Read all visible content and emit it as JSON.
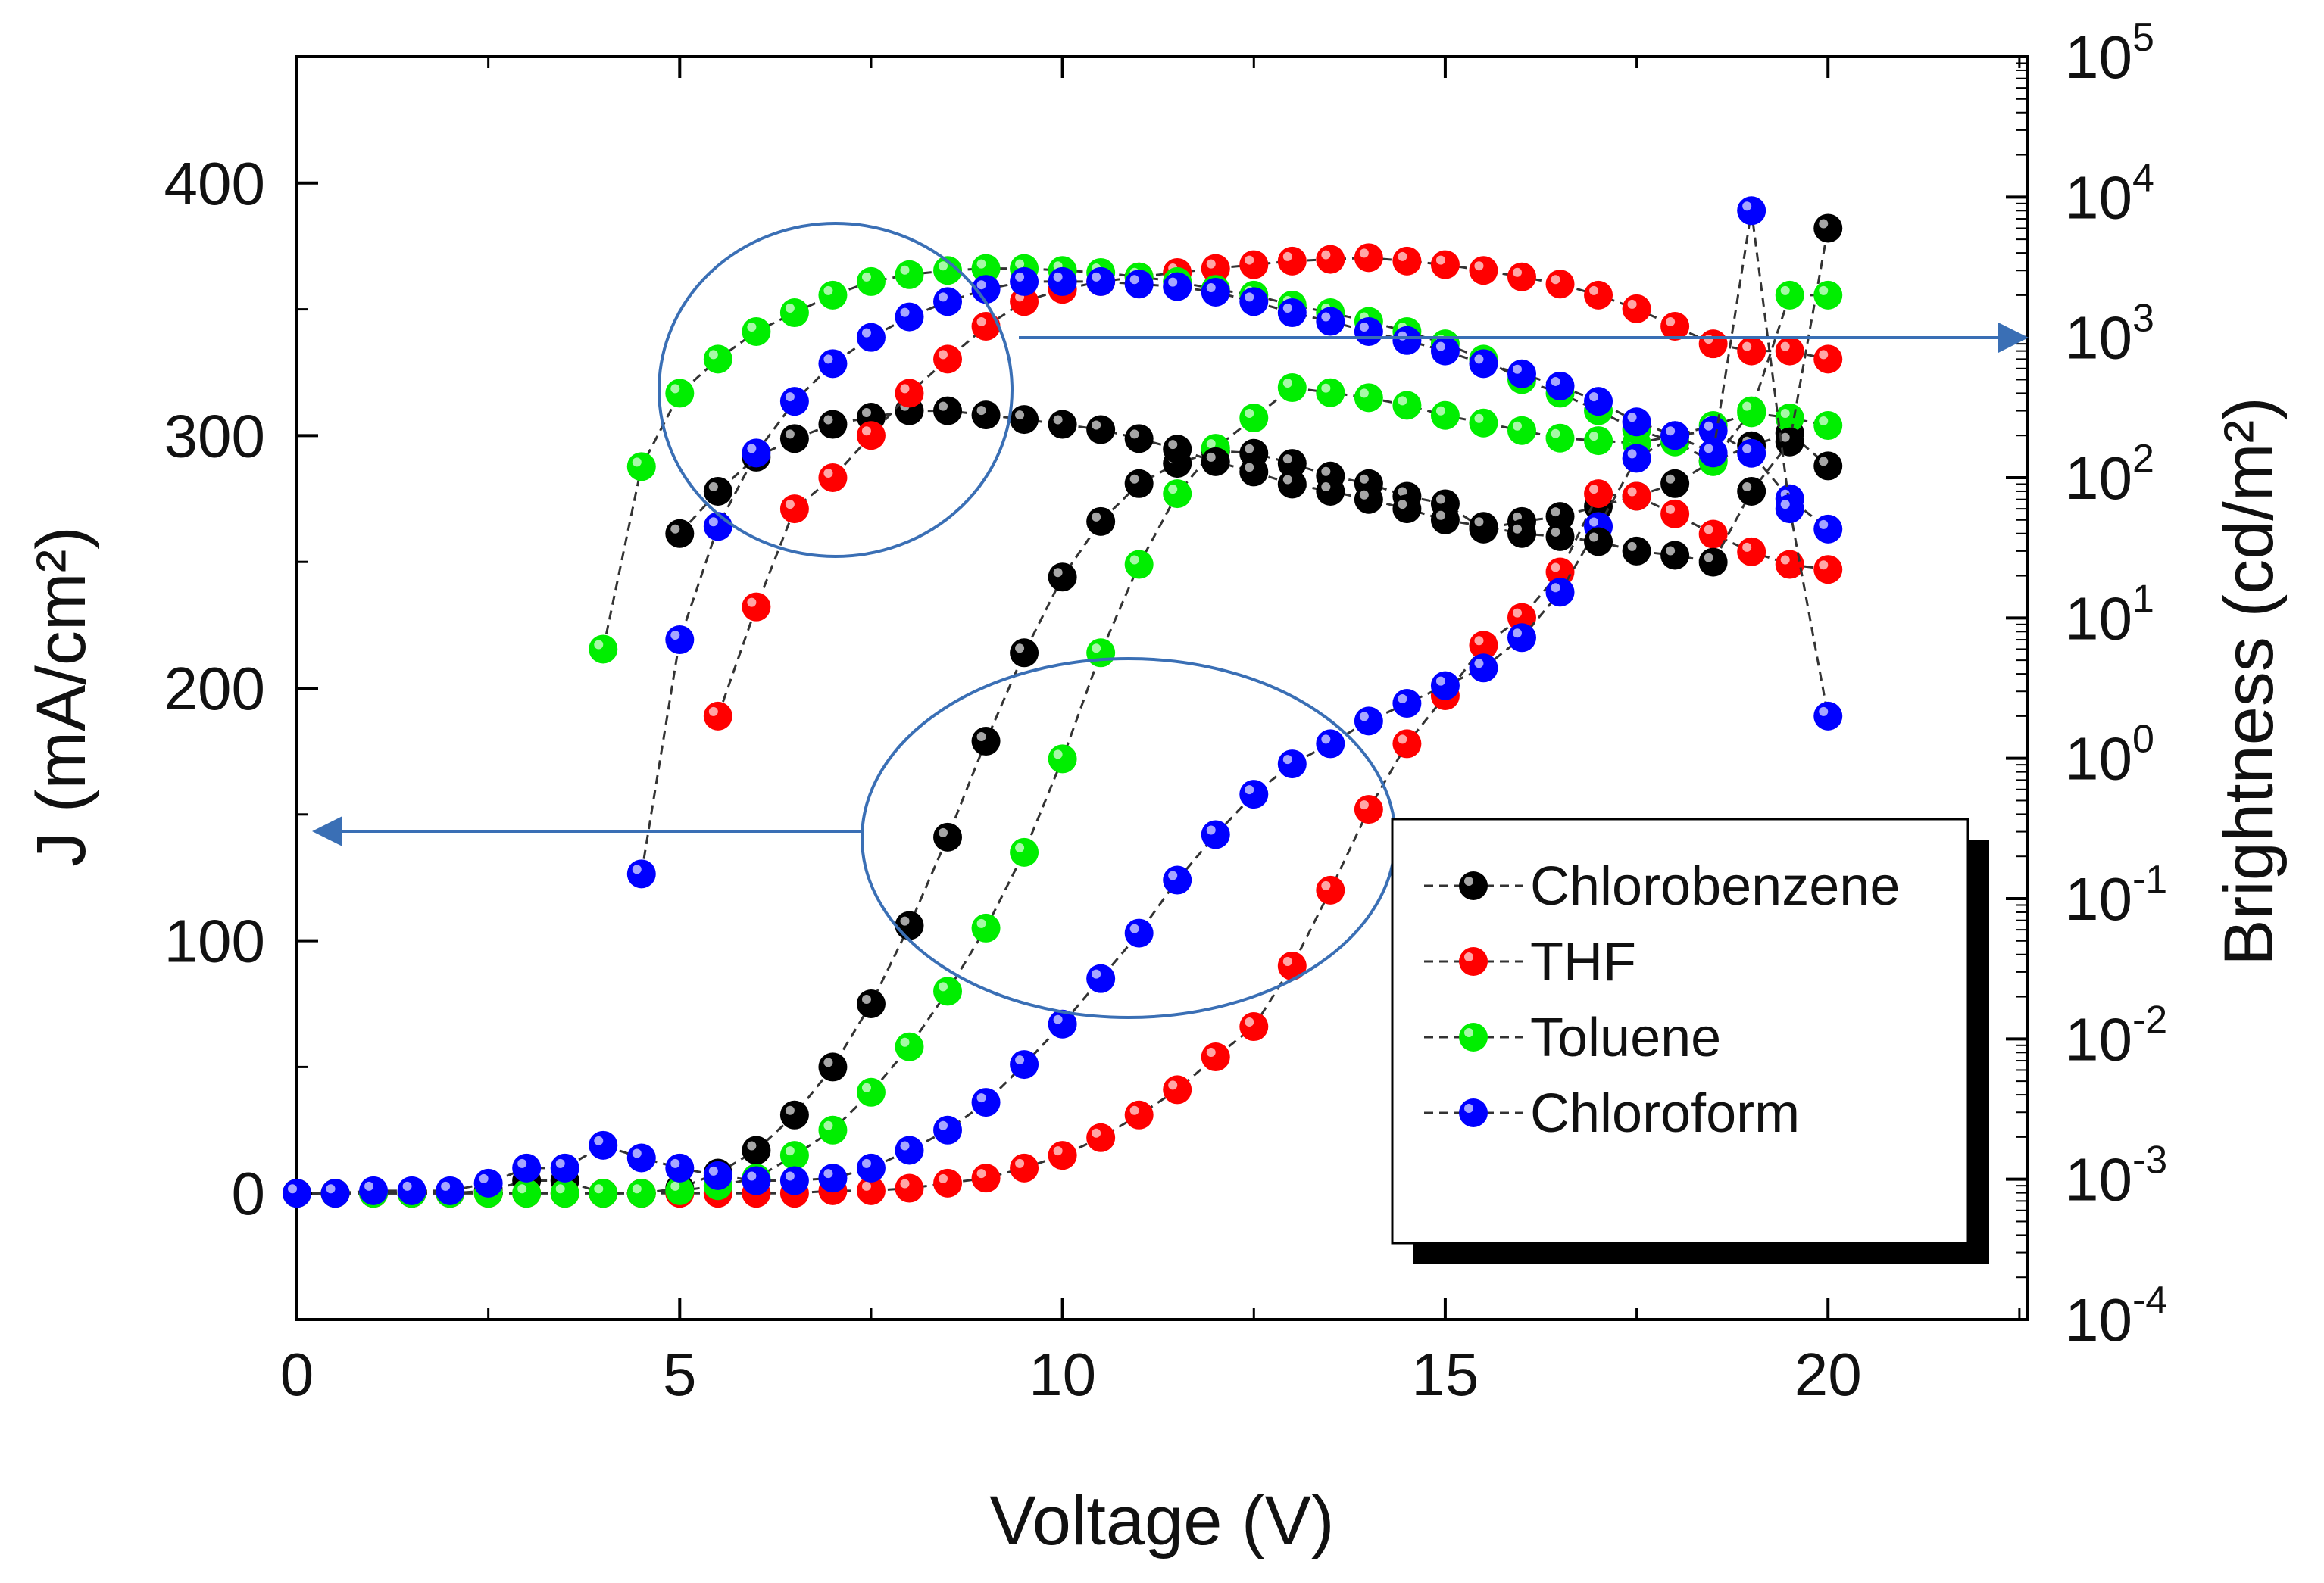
{
  "chart_data": {
    "type": "scatter",
    "title": "",
    "xlabel": "Voltage (V)",
    "ylabel_left": "J (mA/cm²)",
    "ylabel_right": "Brightness (cd/m²)",
    "xlim": [
      0,
      22.6
    ],
    "ylim_left": [
      -50,
      450
    ],
    "ylim_right_log10": [
      -4,
      5
    ],
    "x_ticks": [
      0,
      5,
      10,
      15,
      20
    ],
    "y_left_ticks": [
      0,
      100,
      200,
      300,
      400
    ],
    "y_right_ticks": [
      {
        "base": "10",
        "exp": "-4",
        "p": -4
      },
      {
        "base": "10",
        "exp": "-3",
        "p": -3
      },
      {
        "base": "10",
        "exp": "-2",
        "p": -2
      },
      {
        "base": "10",
        "exp": "-1",
        "p": -1
      },
      {
        "base": "10",
        "exp": "0",
        "p": 0
      },
      {
        "base": "10",
        "exp": "1",
        "p": 1
      },
      {
        "base": "10",
        "exp": "2",
        "p": 2
      },
      {
        "base": "10",
        "exp": "3",
        "p": 3
      },
      {
        "base": "10",
        "exp": "4",
        "p": 4
      },
      {
        "base": "10",
        "exp": "5",
        "p": 5
      }
    ],
    "colors": {
      "Chlorobenzene": "#000000",
      "THF": "#ff0000",
      "Toluene": "#00ee00",
      "Chloroform": "#0000ff",
      "annotation": "#3a6fb5"
    },
    "legend": [
      "Chlorobenzene",
      "THF",
      "Toluene",
      "Chloroform"
    ],
    "series_J": [
      {
        "name": "Chlorobenzene",
        "x": [
          0,
          0.5,
          1,
          1.5,
          2,
          2.5,
          3,
          3.5,
          4,
          4.5,
          5,
          5.5,
          6,
          6.5,
          7,
          7.5,
          8,
          8.5,
          9,
          9.5,
          10,
          10.5,
          11,
          11.5,
          12,
          12.5,
          13,
          13.5,
          14,
          14.5,
          15,
          15.5,
          16,
          16.5,
          17,
          17.5,
          18,
          18.5,
          19,
          19.5,
          20
        ],
        "y": [
          0,
          0,
          0,
          0,
          0,
          1,
          5,
          5,
          0,
          0,
          2,
          8,
          17,
          31,
          50,
          75,
          106,
          141,
          179,
          214,
          244,
          266,
          281,
          289,
          294,
          293,
          289,
          284,
          281,
          276,
          273,
          263,
          266,
          268,
          272,
          276,
          281,
          290,
          296,
          301,
          288
        ]
      },
      {
        "name": "THF",
        "x": [
          0,
          0.5,
          1,
          1.5,
          2,
          2.5,
          3,
          3.5,
          4,
          4.5,
          5,
          5.5,
          6,
          6.5,
          7,
          7.5,
          8,
          8.5,
          9,
          9.5,
          10,
          10.5,
          11,
          11.5,
          12,
          12.5,
          13,
          13.5,
          14,
          14.5,
          15,
          15.5,
          16,
          16.5,
          17,
          17.5,
          18,
          18.5,
          19,
          19.5,
          20
        ],
        "y": [
          0,
          0,
          0,
          0,
          0,
          0,
          0,
          0,
          0,
          0,
          0,
          0,
          0,
          0,
          1,
          1,
          2,
          4,
          6,
          10,
          15,
          22,
          31,
          41,
          54,
          66,
          90,
          120,
          152,
          178,
          197,
          217,
          228,
          246,
          277,
          276,
          269,
          261,
          254,
          249,
          247
        ]
      },
      {
        "name": "Toluene",
        "x": [
          0,
          0.5,
          1,
          1.5,
          2,
          2.5,
          3,
          3.5,
          4,
          4.5,
          5,
          5.5,
          6,
          6.5,
          7,
          7.5,
          8,
          8.5,
          9,
          9.5,
          10,
          10.5,
          11,
          11.5,
          12,
          12.5,
          13,
          13.5,
          14,
          14.5,
          15,
          15.5,
          16,
          16.5,
          17,
          17.5,
          18,
          18.5,
          19,
          19.5,
          20
        ],
        "y": [
          0,
          0,
          0,
          0,
          0,
          0,
          0,
          0,
          0,
          0,
          1,
          3,
          6,
          15,
          25,
          40,
          58,
          80,
          105,
          135,
          172,
          214,
          249,
          277,
          295,
          307,
          319,
          317,
          315,
          312,
          308,
          305,
          302,
          299,
          298,
          297,
          300,
          304,
          309,
          307,
          304
        ]
      },
      {
        "name": "Chloroform",
        "x": [
          0,
          0.5,
          1,
          1.5,
          2,
          2.5,
          3,
          3.5,
          4,
          4.5,
          5,
          5.5,
          6,
          6.5,
          7,
          7.5,
          8,
          8.5,
          9,
          9.5,
          10,
          10.5,
          11,
          11.5,
          12,
          12.5,
          13,
          13.5,
          14,
          14.5,
          15,
          15.5,
          16,
          16.5,
          17,
          17.5,
          18,
          18.5,
          19,
          19.5,
          20
        ],
        "y": [
          0,
          0,
          1,
          1,
          1,
          4,
          10,
          10,
          19,
          14,
          10,
          7,
          5,
          5,
          6,
          10,
          17,
          25,
          36,
          51,
          67,
          85,
          103,
          124,
          142,
          158,
          170,
          178,
          187,
          194,
          201,
          208,
          220,
          238,
          264,
          291,
          300,
          302,
          293,
          275,
          263
        ]
      }
    ],
    "series_brightness": [
      {
        "name": "Chlorobenzene",
        "x": [
          5,
          5.5,
          6,
          6.5,
          7,
          7.5,
          8,
          8.5,
          9,
          9.5,
          10,
          10.5,
          11,
          11.5,
          12,
          12.5,
          13,
          13.5,
          14,
          14.5,
          15,
          15.5,
          16,
          16.5,
          17,
          17.5,
          18,
          18.5,
          19,
          19.5,
          20
        ],
        "y": [
          40,
          80,
          140,
          190,
          240,
          270,
          300,
          300,
          280,
          260,
          240,
          220,
          190,
          160,
          130,
          110,
          90,
          80,
          70,
          60,
          50,
          45,
          40,
          38,
          35,
          30,
          28,
          25,
          80,
          180,
          6000
        ]
      },
      {
        "name": "THF",
        "x": [
          5.5,
          6,
          6.5,
          7,
          7.5,
          8,
          8.5,
          9,
          9.5,
          10,
          10.5,
          11,
          11.5,
          12,
          12.5,
          13,
          13.5,
          14,
          14.5,
          15,
          15.5,
          16,
          16.5,
          17,
          17.5,
          18,
          18.5,
          19,
          19.5,
          20
        ],
        "y": [
          2,
          12,
          60,
          100,
          200,
          400,
          700,
          1200,
          1800,
          2200,
          2500,
          2700,
          2900,
          3100,
          3300,
          3500,
          3600,
          3700,
          3500,
          3300,
          3000,
          2700,
          2400,
          2000,
          1600,
          1200,
          900,
          800,
          800,
          700
        ]
      },
      {
        "name": "Toluene",
        "x": [
          4,
          4.5,
          5,
          5.5,
          6,
          6.5,
          7,
          7.5,
          8,
          8.5,
          9,
          9.5,
          10,
          10.5,
          11,
          11.5,
          12,
          12.5,
          13,
          13.5,
          14,
          14.5,
          15,
          15.5,
          16,
          16.5,
          17,
          17.5,
          18,
          18.5,
          19,
          19.5,
          20
        ],
        "y": [
          6,
          120,
          400,
          700,
          1100,
          1500,
          2000,
          2500,
          2800,
          3000,
          3100,
          3100,
          3000,
          2900,
          2700,
          2500,
          2200,
          2000,
          1700,
          1500,
          1300,
          1100,
          900,
          700,
          500,
          400,
          300,
          220,
          180,
          130,
          300,
          2000,
          2000
        ]
      },
      {
        "name": "Chloroform",
        "x": [
          4.5,
          5,
          5.5,
          6,
          6.5,
          7,
          7.5,
          8,
          8.5,
          9,
          9.5,
          10,
          10.5,
          11,
          11.5,
          12,
          12.5,
          13,
          13.5,
          14,
          14.5,
          15,
          15.5,
          16,
          16.5,
          17,
          17.5,
          18,
          18.5,
          19,
          19.5,
          20
        ],
        "y": [
          0.15,
          7,
          45,
          150,
          350,
          650,
          1000,
          1400,
          1800,
          2200,
          2500,
          2500,
          2500,
          2400,
          2300,
          2100,
          1800,
          1500,
          1300,
          1100,
          950,
          800,
          650,
          550,
          450,
          350,
          250,
          200,
          150,
          8000,
          60,
          2
        ]
      }
    ],
    "annotations": [
      "ellipse-brightness-curves",
      "arrow-to-right-axis",
      "ellipse-current-curves",
      "arrow-to-left-axis"
    ]
  }
}
